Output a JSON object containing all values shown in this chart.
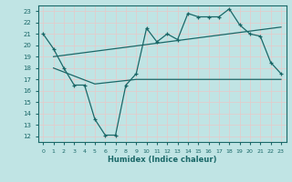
{
  "xlabel": "Humidex (Indice chaleur)",
  "bg_color": "#c0e4e4",
  "grid_color": "#d4f0f0",
  "line_color": "#1a6868",
  "xlim": [
    -0.5,
    23.5
  ],
  "ylim": [
    11.5,
    23.5
  ],
  "xticks": [
    0,
    1,
    2,
    3,
    4,
    5,
    6,
    7,
    8,
    9,
    10,
    11,
    12,
    13,
    14,
    15,
    16,
    17,
    18,
    19,
    20,
    21,
    22,
    23
  ],
  "yticks": [
    12,
    13,
    14,
    15,
    16,
    17,
    18,
    19,
    20,
    21,
    22,
    23
  ],
  "line1_x": [
    0,
    1,
    2,
    3,
    4,
    5,
    6,
    7,
    8,
    9,
    10,
    11,
    12,
    13,
    14,
    15,
    16,
    17,
    18,
    19,
    20,
    21,
    22,
    23
  ],
  "line1_y": [
    21.0,
    19.7,
    18.0,
    16.5,
    16.5,
    13.5,
    12.1,
    12.1,
    16.5,
    17.5,
    21.5,
    20.3,
    21.0,
    20.5,
    22.8,
    22.5,
    22.5,
    22.5,
    23.2,
    21.8,
    21.0,
    20.8,
    18.5,
    17.5
  ],
  "line2_x": [
    1,
    23
  ],
  "line2_y": [
    19.0,
    21.6
  ],
  "line3_x": [
    1,
    5,
    9,
    23
  ],
  "line3_y": [
    18.0,
    16.6,
    17.0,
    17.0
  ]
}
